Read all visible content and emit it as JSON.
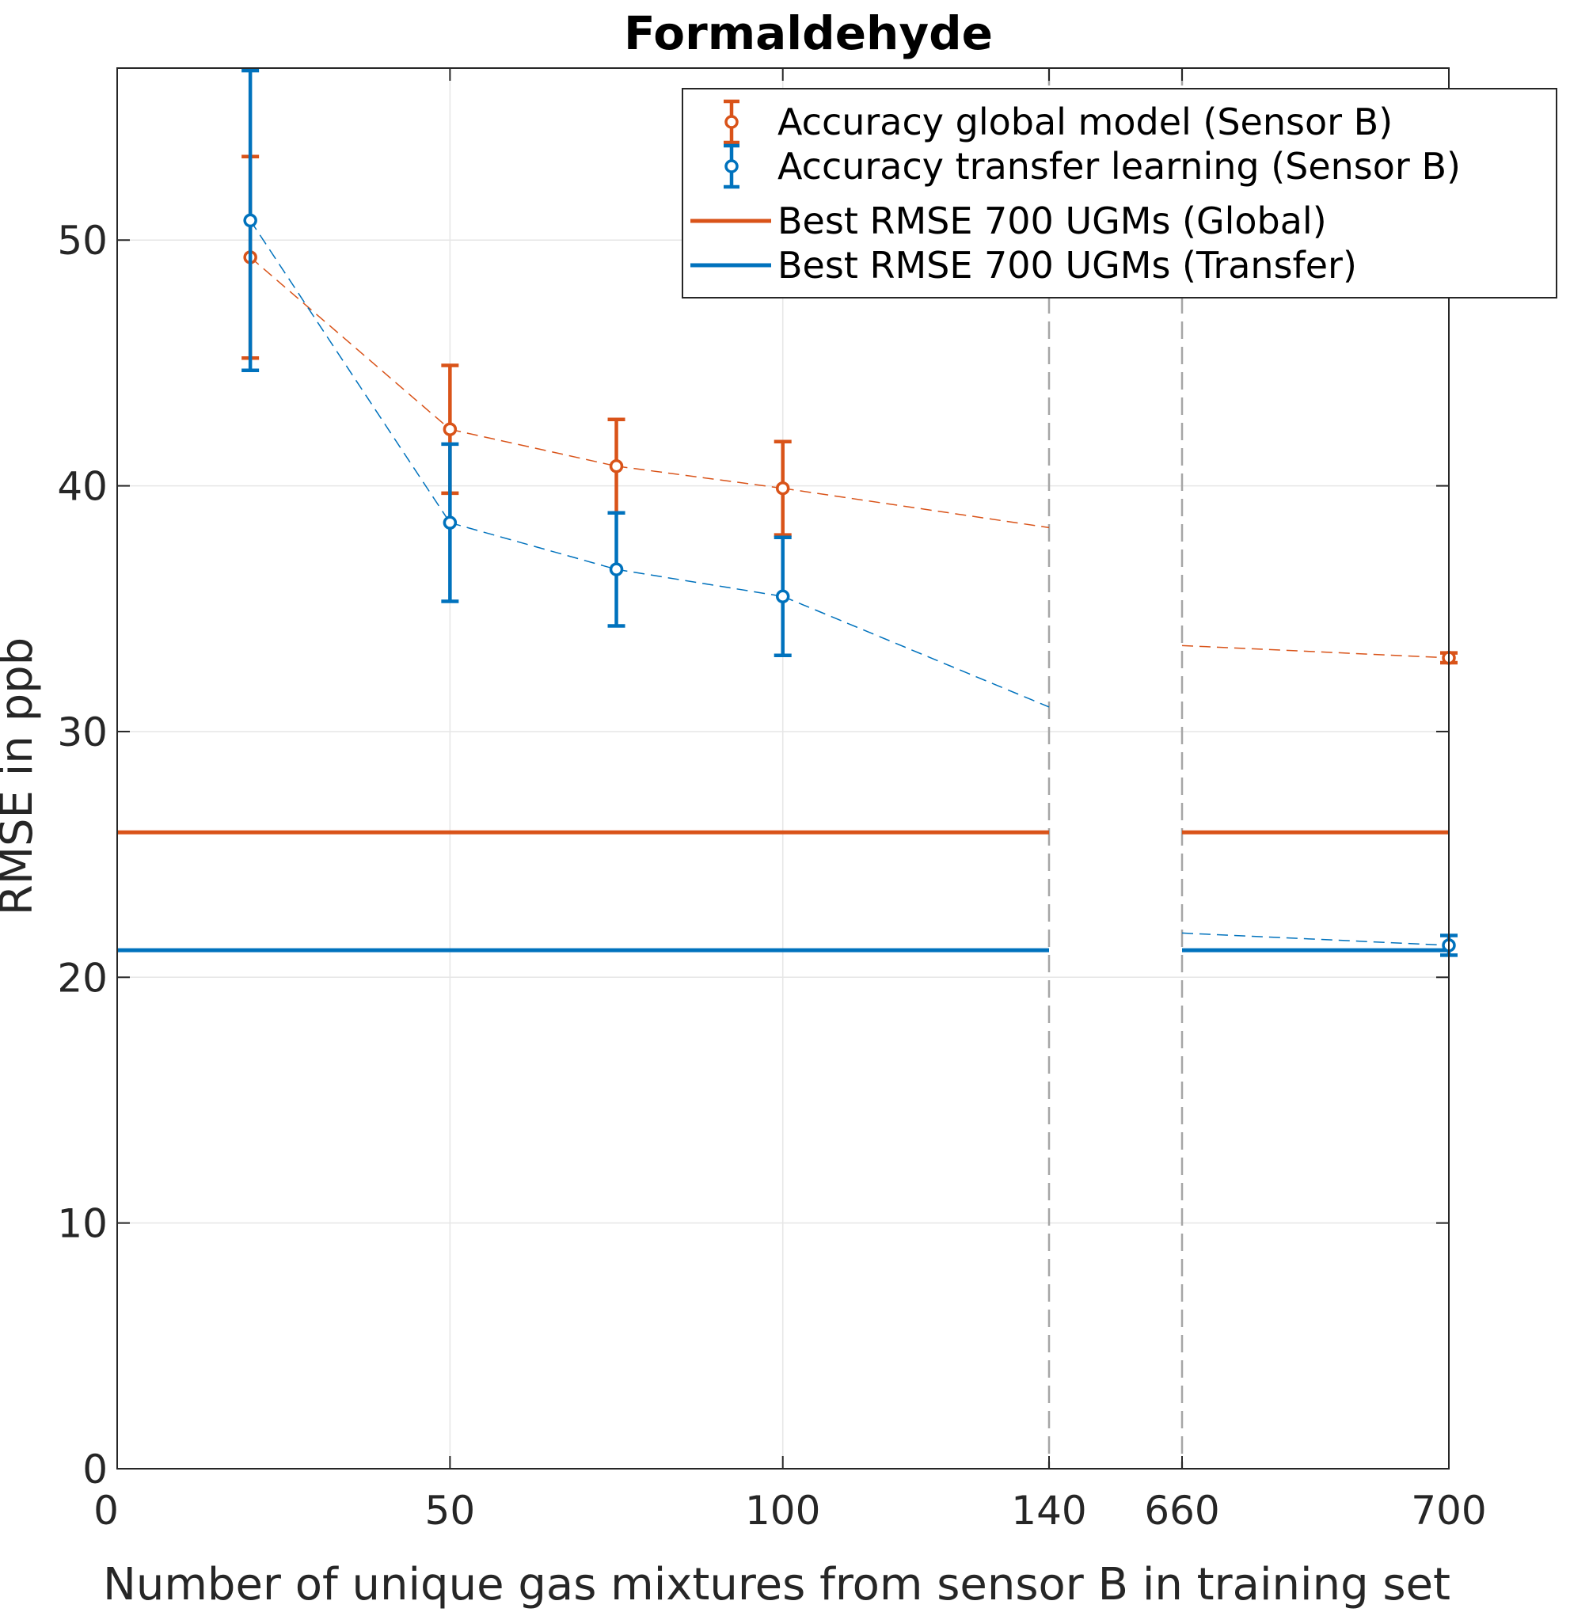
{
  "chart_data": {
    "type": "line",
    "title": "Formaldehyde",
    "xlabel": "Number of unique gas mixtures from sensor B in training set",
    "ylabel": "RMSE in ppb",
    "ylim": [
      0,
      57
    ],
    "yticks": [
      0,
      10,
      20,
      30,
      40,
      50
    ],
    "xticks": [
      0,
      50,
      100,
      140,
      660,
      700
    ],
    "xtick_labels": [
      "0",
      "50",
      "100",
      "140",
      "660",
      "700"
    ],
    "x_axis_note": "broken axis between 140 and 660",
    "grid": true,
    "legend_position": "top-right",
    "colors": {
      "global": "#d95319",
      "transfer": "#0072bd",
      "break": "#a6a6a6",
      "grid": "#e6e6e6",
      "axis": "#262626"
    },
    "series": [
      {
        "name": "Accuracy global model (Sensor B)",
        "style": "errorbar",
        "color": "#d95319",
        "points": [
          {
            "x": 20,
            "y": 49.3,
            "err": 4.1
          },
          {
            "x": 50,
            "y": 42.3,
            "err": 2.6
          },
          {
            "x": 75,
            "y": 40.8,
            "err": 1.9
          },
          {
            "x": 100,
            "y": 39.9,
            "err": 1.9
          },
          {
            "x": 700,
            "y": 33.0,
            "err": 0.2
          }
        ],
        "trend_line": [
          {
            "x": 20,
            "y": 49.3
          },
          {
            "x": 50,
            "y": 42.3
          },
          {
            "x": 75,
            "y": 40.8
          },
          {
            "x": 100,
            "y": 39.9
          },
          {
            "x": 140,
            "y": 38.3
          },
          {
            "x": 660,
            "y": 33.5
          },
          {
            "x": 700,
            "y": 33.0
          }
        ]
      },
      {
        "name": "Accuracy transfer learning (Sensor B)",
        "style": "errorbar",
        "color": "#0072bd",
        "points": [
          {
            "x": 20,
            "y": 50.8,
            "err": 6.1
          },
          {
            "x": 50,
            "y": 38.5,
            "err": 3.2
          },
          {
            "x": 75,
            "y": 36.6,
            "err": 2.3
          },
          {
            "x": 100,
            "y": 35.5,
            "err": 2.4
          },
          {
            "x": 700,
            "y": 21.3,
            "err": 0.4
          }
        ],
        "trend_line": [
          {
            "x": 20,
            "y": 50.8
          },
          {
            "x": 50,
            "y": 38.5
          },
          {
            "x": 75,
            "y": 36.6
          },
          {
            "x": 100,
            "y": 35.5
          },
          {
            "x": 140,
            "y": 31.0
          },
          {
            "x": 660,
            "y": 21.8
          },
          {
            "x": 700,
            "y": 21.3
          }
        ]
      },
      {
        "name": "Best RMSE 700 UGMs (Global)",
        "style": "hline",
        "color": "#d95319",
        "y": 25.9
      },
      {
        "name": "Best RMSE 700 UGMs (Transfer)",
        "style": "hline",
        "color": "#0072bd",
        "y": 21.1
      }
    ]
  }
}
